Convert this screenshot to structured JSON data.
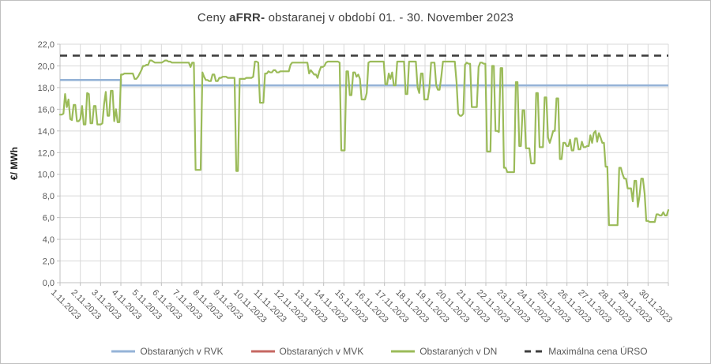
{
  "title": {
    "prefix": "Ceny ",
    "bold": "aFRR-",
    "suffix": " obstaranej v období 01. - 30. November 2023"
  },
  "y_axis": {
    "title": "€/ MWh",
    "tick_labels": [
      "22,0",
      "20,0",
      "18,0",
      "16,0",
      "14,0",
      "12,0",
      "10,0",
      "8,0",
      "6,0",
      "4,0",
      "2,0",
      "0,0"
    ]
  },
  "colors": {
    "gridline": "#d9d9d9",
    "axis_line": "#c0c0c0",
    "tick_text": "#595959",
    "title_text": "#404040"
  },
  "chart_data": {
    "type": "line",
    "title": "Ceny aFRR- obstaranej v období 01. - 30. November 2023",
    "ylabel": "€/ MWh",
    "ylim": [
      0,
      22
    ],
    "y_tick_step": 2,
    "grid": true,
    "legend_position": "bottom",
    "categories": [
      "1.11.2023",
      "2.11.2023",
      "3.11.2023",
      "4.11.2023",
      "5.11.2023",
      "6.11.2023",
      "7.11.2023",
      "8.11.2023",
      "9.11.2023",
      "10.11.2023",
      "11.11.2023",
      "12.11.2023",
      "13.11.2023",
      "14.11.2023",
      "15.11.2023",
      "16.11.2023",
      "17.11.2023",
      "18.11.2023",
      "19.11.2023",
      "20.11.2023",
      "21.11.2023",
      "22.11.2023",
      "23.11.2023",
      "24.11.2023",
      "25.11.2023",
      "26.11.2023",
      "27.11.2023",
      "28.11.2023",
      "29.11.2023",
      "30.11.2023"
    ],
    "points_per_day": 12,
    "series": [
      {
        "name": "Obstaraných v RVK",
        "color": "#95b3d7",
        "style": "solid",
        "type": "stepped-constant",
        "segments": [
          {
            "start_day": 1,
            "end_day": 3,
            "value": 18.7
          },
          {
            "start_day": 4,
            "end_day": 30,
            "value": 18.2
          }
        ]
      },
      {
        "name": "Obstaraných v MVK",
        "color": "#c66762",
        "style": "solid",
        "values": []
      },
      {
        "name": "Obstaraných v DN",
        "color": "#9bbb59",
        "style": "solid",
        "values": [
          15.5,
          15.5,
          15.6,
          17.4,
          16.2,
          16.9,
          15.1,
          15.0,
          16.4,
          16.4,
          14.9,
          14.9,
          15.1,
          16.3,
          14.6,
          14.6,
          17.5,
          17.4,
          14.7,
          14.7,
          16.3,
          16.3,
          14.6,
          14.6,
          14.6,
          14.7,
          16.5,
          17.6,
          15.4,
          15.4,
          17.7,
          17.7,
          14.9,
          16.0,
          14.8,
          14.8,
          19.2,
          19.2,
          19.3,
          19.3,
          19.3,
          19.3,
          19.3,
          19.3,
          18.8,
          18.8,
          19.0,
          19.3,
          19.6,
          20.0,
          20.0,
          20.1,
          20.1,
          20.5,
          20.5,
          20.4,
          20.3,
          20.3,
          20.3,
          20.3,
          20.3,
          20.4,
          20.5,
          20.5,
          20.4,
          20.4,
          20.3,
          20.3,
          20.3,
          20.3,
          20.3,
          20.3,
          20.3,
          20.3,
          20.3,
          20.3,
          20.3,
          19.9,
          20.3,
          20.3,
          10.4,
          10.4,
          10.4,
          10.4,
          19.4,
          19.0,
          18.7,
          18.7,
          18.6,
          18.6,
          19.2,
          19.2,
          18.6,
          18.6,
          18.9,
          18.9,
          19.0,
          19.0,
          19.0,
          18.9,
          18.9,
          18.9,
          18.9,
          18.9,
          10.3,
          10.3,
          18.8,
          18.8,
          18.8,
          18.8,
          18.9,
          18.9,
          18.9,
          18.9,
          19.0,
          20.4,
          20.4,
          20.3,
          16.6,
          16.6,
          16.6,
          19.3,
          19.3,
          19.5,
          19.4,
          19.4,
          19.6,
          19.6,
          19.4,
          19.4,
          19.5,
          19.5,
          19.5,
          19.5,
          19.5,
          19.5,
          20.1,
          20.3,
          20.3,
          20.3,
          20.3,
          20.3,
          20.3,
          20.3,
          20.3,
          20.3,
          20.3,
          19.3,
          19.6,
          19.4,
          19.2,
          19.2,
          18.9,
          19.5,
          19.9,
          19.9,
          20.0,
          20.3,
          20.4,
          20.4,
          20.4,
          20.4,
          20.4,
          20.4,
          20.4,
          20.3,
          12.2,
          12.2,
          12.2,
          19.5,
          19.5,
          17.3,
          17.3,
          19.4,
          19.4,
          19.0,
          19.2,
          18.8,
          16.9,
          16.9,
          16.9,
          17.5,
          20.3,
          20.4,
          20.4,
          20.4,
          20.4,
          20.4,
          20.4,
          20.4,
          20.4,
          20.4,
          18.3,
          18.3,
          19.3,
          18.8,
          19.4,
          18.2,
          18.2,
          20.4,
          20.4,
          20.4,
          20.4,
          20.4,
          17.4,
          17.4,
          20.4,
          20.4,
          20.4,
          20.4,
          20.4,
          18.0,
          17.5,
          19.3,
          19.3,
          16.9,
          16.9,
          16.9,
          18.0,
          20.3,
          20.3,
          20.3,
          18.2,
          17.8,
          17.8,
          19.0,
          20.4,
          20.4,
          20.4,
          20.4,
          20.4,
          20.4,
          20.4,
          20.4,
          18.5,
          15.6,
          15.4,
          15.4,
          15.6,
          20.1,
          20.3,
          20.2,
          20.2,
          16.2,
          16.2,
          16.2,
          16.2,
          19.9,
          20.3,
          20.3,
          20.2,
          20.2,
          12.1,
          12.1,
          12.1,
          20.0,
          20.0,
          14.0,
          14.0,
          13.9,
          19.8,
          19.8,
          10.6,
          10.6,
          10.2,
          10.2,
          10.2,
          10.2,
          10.2,
          18.5,
          18.5,
          12.6,
          12.6,
          15.9,
          15.9,
          12.4,
          12.4,
          12.4,
          11.0,
          11.0,
          11.0,
          17.5,
          17.5,
          12.5,
          12.5,
          12.5,
          17.1,
          17.1,
          13.4,
          12.9,
          13.4,
          14.0,
          14.0,
          17.0,
          17.0,
          11.4,
          11.4,
          12.9,
          12.9,
          12.6,
          12.6,
          13.2,
          12.2,
          12.2,
          13.3,
          13.3,
          12.3,
          12.3,
          13.0,
          12.5,
          12.5,
          12.6,
          12.6,
          13.6,
          12.9,
          13.8,
          14.0,
          13.0,
          13.8,
          13.4,
          12.9,
          12.9,
          10.7,
          10.7,
          5.3,
          5.3,
          5.3,
          5.3,
          5.3,
          5.3,
          10.6,
          10.6,
          10.0,
          9.6,
          9.6,
          8.7,
          8.7,
          8.7,
          7.5,
          9.4,
          9.4,
          7.0,
          8.0,
          9.6,
          9.6,
          8.2,
          5.7,
          5.7,
          5.6,
          5.6,
          5.6,
          5.6,
          6.3,
          6.3,
          6.2,
          6.2,
          6.5,
          6.2,
          6.2,
          6.7
        ]
      },
      {
        "name": "Maximálna cena ÚRSO",
        "color": "#3f3f3f",
        "style": "dashed",
        "type": "constant",
        "constant_value": 20.95
      }
    ]
  }
}
